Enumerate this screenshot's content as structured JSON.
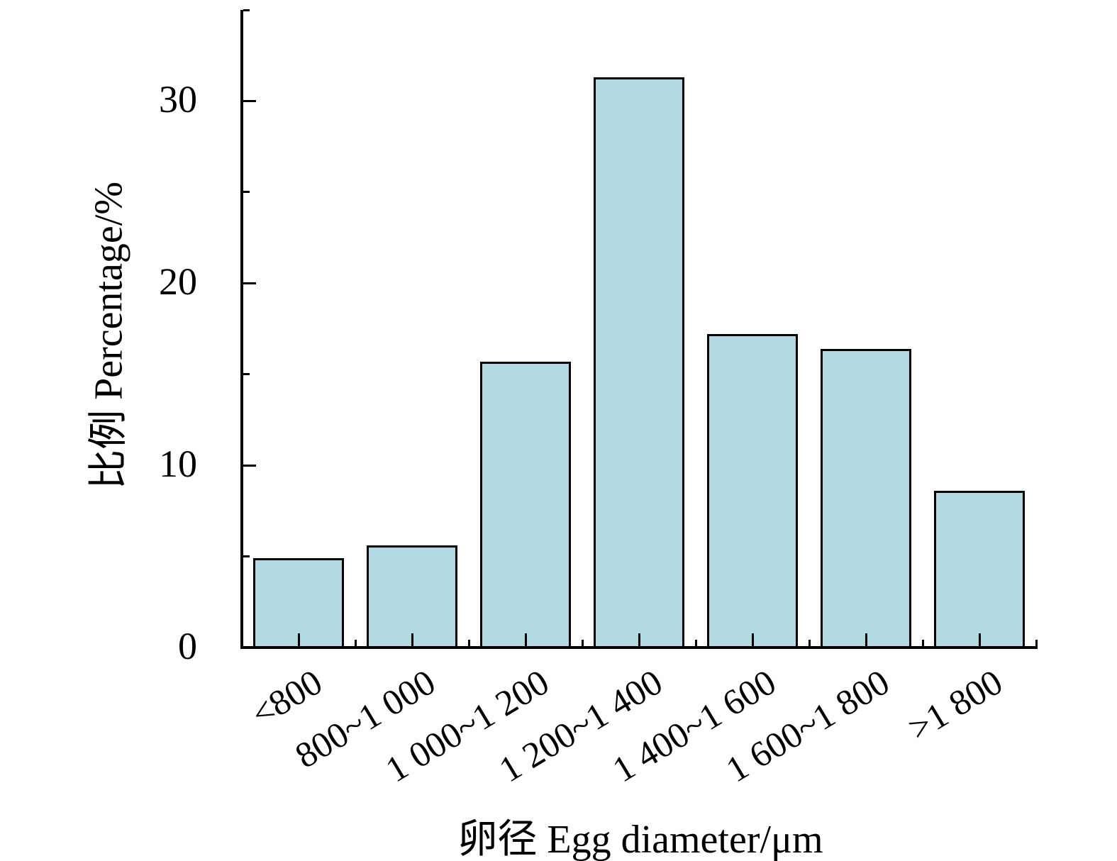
{
  "figure": {
    "background_color": "#ffffff",
    "text_color": "#000000"
  },
  "chart_data": {
    "type": "bar",
    "title": "",
    "categories": [
      "<800",
      "800~1 000",
      "1 000~1 200",
      "1 200~1 400",
      "1 400~1 600",
      "1 600~1 800",
      ">1 800"
    ],
    "values": [
      4.9,
      5.6,
      15.7,
      31.3,
      17.2,
      16.4,
      8.6
    ],
    "series_unit": "%",
    "xlabel": "卵径 Egg diameter/μm",
    "ylabel": "比例 Percentage/%",
    "ylim": [
      0,
      35
    ],
    "yticks_major": [
      0,
      10,
      20,
      30
    ],
    "yticks_minor": [
      5,
      15,
      25,
      35
    ],
    "x_minor_ticks_at_category_boundaries": true,
    "x_tick_label_rotation_deg": -31,
    "grid": false,
    "legend": null,
    "bar_fill_color": "#b2d8e2",
    "bar_edge_color": "#000000",
    "axis_color": "#000000"
  }
}
